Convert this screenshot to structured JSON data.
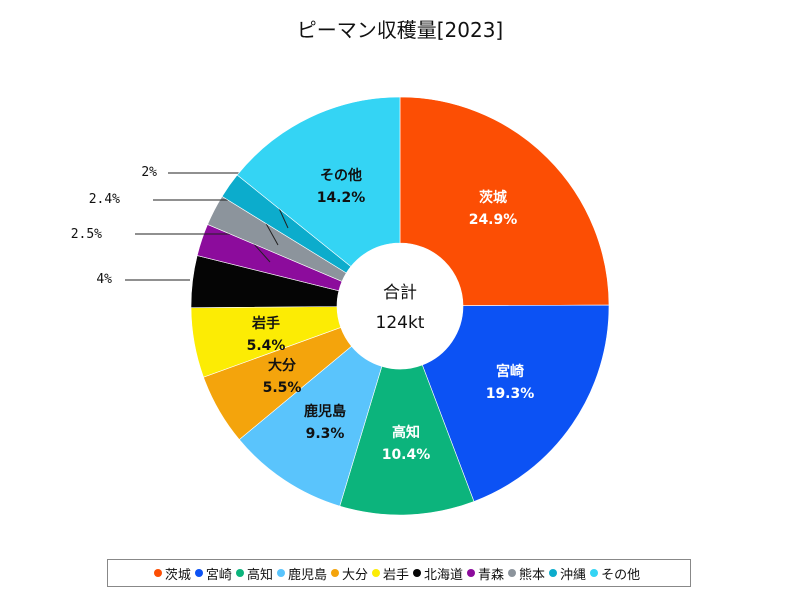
{
  "chart_data": {
    "type": "pie",
    "title": "ピーマン収穫量[2023]",
    "center_label": [
      "合計",
      "124kt"
    ],
    "slices": [
      {
        "name": "茨城",
        "value": 24.9,
        "label": "24.9%",
        "color": "#fc4e04"
      },
      {
        "name": "宮崎",
        "value": 19.3,
        "label": "19.3%",
        "color": "#0c52f4"
      },
      {
        "name": "高知",
        "value": 10.4,
        "label": "10.4%",
        "color": "#0cb47c"
      },
      {
        "name": "鹿児島",
        "value": 9.3,
        "label": "9.3%",
        "color": "#5ac4fc"
      },
      {
        "name": "大分",
        "value": 5.5,
        "label": "5.5%",
        "color": "#f4a40c"
      },
      {
        "name": "岩手",
        "value": 5.4,
        "label": "5.4%",
        "color": "#fcec04"
      },
      {
        "name": "北海道",
        "value": 4.0,
        "label": "4%",
        "color": "#050505"
      },
      {
        "name": "青森",
        "value": 2.5,
        "label": "2.5%",
        "color": "#8c0c9c"
      },
      {
        "name": "熊本",
        "value": 2.4,
        "label": "2.4%",
        "color": "#8c949c"
      },
      {
        "name": "沖縄",
        "value": 2.0,
        "label": "2%",
        "color": "#0caccc"
      },
      {
        "name": "その他",
        "value": 14.2,
        "label": "14.2%",
        "color": "#34d4f4"
      }
    ],
    "legend_position": "bottom"
  }
}
